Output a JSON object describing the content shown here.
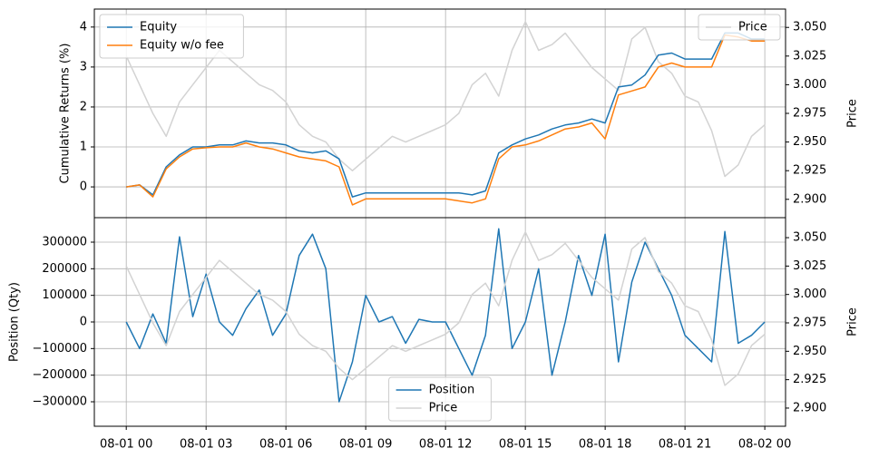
{
  "chart_data": [
    {
      "type": "line",
      "ylabel": "Cumulative Returns (%)",
      "y2label": "Price",
      "sharex": true,
      "x": [
        0,
        0.5,
        1,
        1.5,
        2,
        2.5,
        3,
        3.5,
        4,
        4.5,
        5,
        5.5,
        6,
        6.5,
        7,
        7.5,
        8,
        8.5,
        9,
        9.5,
        10,
        10.5,
        11,
        11.5,
        12,
        12.5,
        13,
        13.5,
        14,
        14.5,
        15,
        15.5,
        16,
        16.5,
        17,
        17.5,
        18,
        18.5,
        19,
        19.5,
        20,
        20.5,
        21,
        21.5,
        22,
        22.5,
        23,
        23.5,
        24
      ],
      "xlim": [
        -1.2,
        24.78
      ],
      "ylim": [
        -0.77,
        4.45
      ],
      "yticks": [
        0,
        1,
        2,
        3,
        4
      ],
      "y2lim": [
        2.884,
        3.066
      ],
      "y2ticks": [
        {
          "value": 2.9,
          "label": "2.900"
        },
        {
          "value": 2.925,
          "label": "2.925"
        },
        {
          "value": 2.95,
          "label": "2.950"
        },
        {
          "value": 2.975,
          "label": "2.975"
        },
        {
          "value": 3.0,
          "label": "3.000"
        },
        {
          "value": 3.025,
          "label": "3.025"
        },
        {
          "value": 3.05,
          "label": "3.050"
        }
      ],
      "grid": true,
      "legend": "upper left",
      "legend2": "upper right",
      "series": [
        {
          "name": "Price",
          "color": "#d3d3d3",
          "axis": "y2",
          "values": [
            3.025,
            3.0,
            2.975,
            2.955,
            2.985,
            3.0,
            3.015,
            3.03,
            3.02,
            3.01,
            3.0,
            2.995,
            2.985,
            2.965,
            2.955,
            2.95,
            2.935,
            2.925,
            2.935,
            2.945,
            2.955,
            2.95,
            2.955,
            2.96,
            2.965,
            2.975,
            3.0,
            3.01,
            2.99,
            3.03,
            3.055,
            3.03,
            3.035,
            3.045,
            3.03,
            3.015,
            3.005,
            2.995,
            3.04,
            3.05,
            3.02,
            3.01,
            2.99,
            2.985,
            2.96,
            2.92,
            2.93,
            2.955,
            2.965
          ]
        },
        {
          "name": "Equity",
          "color": "#1f77b4",
          "values": [
            0,
            0.05,
            -0.2,
            0.5,
            0.8,
            1.0,
            1.0,
            1.05,
            1.05,
            1.15,
            1.1,
            1.1,
            1.05,
            0.9,
            0.85,
            0.9,
            0.7,
            -0.25,
            -0.15,
            -0.15,
            -0.15,
            -0.15,
            -0.15,
            -0.15,
            -0.15,
            -0.15,
            -0.2,
            -0.1,
            0.85,
            1.05,
            1.2,
            1.3,
            1.45,
            1.55,
            1.6,
            1.7,
            1.6,
            2.5,
            2.55,
            2.8,
            3.3,
            3.35,
            3.2,
            3.2,
            3.2,
            3.85,
            3.85,
            3.7,
            3.7
          ]
        },
        {
          "name": "Equity w/o fee",
          "color": "#ff7f0e",
          "values": [
            0,
            0.05,
            -0.25,
            0.45,
            0.75,
            0.95,
            0.98,
            1.0,
            1.0,
            1.1,
            1.0,
            0.95,
            0.85,
            0.75,
            0.7,
            0.65,
            0.5,
            -0.45,
            -0.3,
            -0.3,
            -0.3,
            -0.3,
            -0.3,
            -0.3,
            -0.3,
            -0.35,
            -0.4,
            -0.3,
            0.7,
            1.0,
            1.05,
            1.15,
            1.3,
            1.45,
            1.5,
            1.6,
            1.2,
            2.3,
            2.4,
            2.5,
            3.0,
            3.1,
            3.0,
            3.0,
            3.0,
            3.8,
            3.75,
            3.65,
            3.65
          ]
        }
      ]
    },
    {
      "type": "line",
      "ylabel": "Position (Qty)",
      "y2label": "Price",
      "x": [
        0,
        0.5,
        1,
        1.5,
        2,
        2.5,
        3,
        3.5,
        4,
        4.5,
        5,
        5.5,
        6,
        6.5,
        7,
        7.5,
        8,
        8.5,
        9,
        9.5,
        10,
        10.5,
        11,
        11.5,
        12,
        12.5,
        13,
        13.5,
        14,
        14.5,
        15,
        15.5,
        16,
        16.5,
        17,
        17.5,
        18,
        18.5,
        19,
        19.5,
        20,
        20.5,
        21,
        21.5,
        22,
        22.5,
        23,
        23.5,
        24
      ],
      "xlim": [
        -1.2,
        24.78
      ],
      "xticks": [
        {
          "value": 0,
          "label": "08-01 00"
        },
        {
          "value": 3,
          "label": "08-01 03"
        },
        {
          "value": 6,
          "label": "08-01 06"
        },
        {
          "value": 9,
          "label": "08-01 09"
        },
        {
          "value": 12,
          "label": "08-01 12"
        },
        {
          "value": 15,
          "label": "08-01 15"
        },
        {
          "value": 18,
          "label": "08-01 18"
        },
        {
          "value": 21,
          "label": "08-01 21"
        },
        {
          "value": 24,
          "label": "08-02 00"
        }
      ],
      "ylim": [
        -392000,
        392000
      ],
      "yticks": [
        {
          "value": -300000,
          "label": "−300000"
        },
        {
          "value": -200000,
          "label": "−200000"
        },
        {
          "value": -100000,
          "label": "−100000"
        },
        0,
        100000,
        200000,
        300000
      ],
      "y2lim": [
        2.884,
        3.0676
      ],
      "y2ticks": [
        {
          "value": 2.9,
          "label": "2.900"
        },
        {
          "value": 2.925,
          "label": "2.925"
        },
        {
          "value": 2.95,
          "label": "2.950"
        },
        {
          "value": 2.975,
          "label": "2.975"
        },
        {
          "value": 3.0,
          "label": "3.000"
        },
        {
          "value": 3.025,
          "label": "3.025"
        },
        {
          "value": 3.05,
          "label": "3.050"
        }
      ],
      "grid": true,
      "legend": "lower center",
      "series": [
        {
          "name": "Position",
          "color": "#1f77b4",
          "values": [
            0,
            -100000,
            30000,
            -80000,
            320000,
            20000,
            180000,
            0,
            -50000,
            50000,
            120000,
            -50000,
            30000,
            250000,
            330000,
            200000,
            -300000,
            -150000,
            100000,
            0,
            20000,
            -80000,
            10000,
            0,
            0,
            -100000,
            -200000,
            -50000,
            350000,
            -100000,
            0,
            200000,
            -200000,
            0,
            250000,
            100000,
            330000,
            -150000,
            150000,
            300000,
            200000,
            100000,
            -50000,
            -100000,
            -150000,
            340000,
            -80000,
            -50000,
            0
          ]
        },
        {
          "name": "Price",
          "color": "#d3d3d3",
          "axis": "y2",
          "values": [
            3.025,
            3.0,
            2.975,
            2.955,
            2.985,
            3.0,
            3.015,
            3.03,
            3.02,
            3.01,
            3.0,
            2.995,
            2.985,
            2.965,
            2.955,
            2.95,
            2.935,
            2.925,
            2.935,
            2.945,
            2.955,
            2.95,
            2.955,
            2.96,
            2.965,
            2.975,
            3.0,
            3.01,
            2.99,
            3.03,
            3.055,
            3.03,
            3.035,
            3.045,
            3.03,
            3.015,
            3.005,
            2.995,
            3.04,
            3.05,
            3.02,
            3.01,
            2.99,
            2.985,
            2.96,
            2.92,
            2.93,
            2.955,
            2.965
          ]
        }
      ]
    }
  ]
}
